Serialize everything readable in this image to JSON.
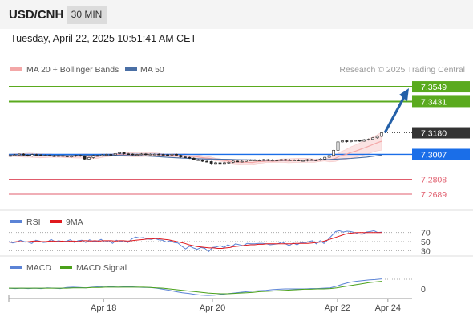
{
  "header": {
    "pair": "USD/CNH",
    "timeframe": "30 MIN"
  },
  "datetime": "Tuesday, April 22, 2025 10:51:41 AM CET",
  "credit": "Research © 2025 Trading Central",
  "colors": {
    "resistance": "#5aaa1e",
    "current": "#333333",
    "pivot": "#1a6ee8",
    "support": "#e05c6c",
    "arrow": "#2460a8",
    "ma50": "#4a6fa5",
    "bollinger": "#f3a7a7",
    "rsi": "#5b83d6",
    "rsi_ma": "#e0191e",
    "macd": "#5b83d6",
    "macd_signal": "#4aa11a"
  },
  "chart_data": [
    {
      "type": "candlestick",
      "legend": [
        "MA 20 + Bollinger Bands",
        "MA 50"
      ],
      "ylim": [
        7.258,
        7.362
      ],
      "x_ticks": [
        {
          "label": "Apr 18",
          "t": 0.235
        },
        {
          "label": "Apr 20",
          "t": 0.505
        },
        {
          "label": "Apr 22",
          "t": 0.815
        },
        {
          "label": "Apr 24",
          "t": 0.94
        }
      ],
      "levels": [
        {
          "value": 7.3549,
          "label": "7.3549",
          "kind": "resistance"
        },
        {
          "value": 7.3431,
          "label": "7.3431",
          "kind": "resistance"
        },
        {
          "value": 7.318,
          "label": "7.3180",
          "kind": "current"
        },
        {
          "value": 7.3007,
          "label": "7.3007",
          "kind": "pivot"
        },
        {
          "value": 7.2808,
          "label": "7.2808",
          "kind": "support"
        },
        {
          "value": 7.2689,
          "label": "7.2689",
          "kind": "support"
        }
      ],
      "closes": [
        7.2998,
        7.3003,
        7.301,
        7.3002,
        7.2995,
        7.3006,
        7.3004,
        7.2998,
        7.3,
        7.2996,
        7.2994,
        7.2997,
        7.2994,
        7.2989,
        7.2993,
        7.2999,
        7.2993,
        7.2969,
        7.2981,
        7.2998,
        7.2996,
        7.3003,
        7.3007,
        7.3004,
        7.3014,
        7.3021,
        7.3012,
        7.301,
        7.3004,
        7.3006,
        7.3011,
        7.3006,
        7.3009,
        7.3009,
        7.3007,
        7.3005,
        7.3002,
        7.3008,
        7.3,
        7.2987,
        7.2983,
        7.2977,
        7.2964,
        7.2962,
        7.2952,
        7.295,
        7.2936,
        7.294,
        7.2939,
        7.294,
        7.2944,
        7.2953,
        7.2952,
        7.2952,
        7.2961,
        7.2962,
        7.2962,
        7.2961,
        7.2965,
        7.2958,
        7.2962,
        7.2958,
        7.2966,
        7.2962,
        7.2962,
        7.2962,
        7.2958,
        7.2958,
        7.2965,
        7.2962,
        7.2961,
        7.297,
        7.2984,
        7.2998,
        7.304,
        7.3107,
        7.3116,
        7.3109,
        7.3117,
        7.3119,
        7.3113,
        7.3125,
        7.3128,
        7.314,
        7.3152,
        7.318
      ],
      "ma20": [
        7.2998,
        7.3002,
        7.3001,
        7.3,
        7.3001,
        7.2998,
        7.2996,
        7.2996,
        7.2998,
        7.2995,
        7.2992,
        7.2991,
        7.2993,
        7.2993,
        7.2994,
        7.2994,
        7.299,
        7.299,
        7.2997,
        7.2999,
        7.3003,
        7.3006,
        7.3005,
        7.3006,
        7.3005,
        7.3006,
        7.3007,
        7.3008,
        7.3005,
        7.3004,
        7.3002,
        7.3001,
        7.3001,
        7.2996,
        7.2996,
        7.2991,
        7.299,
        7.2983,
        7.2978,
        7.2974,
        7.2966,
        7.2961,
        7.2956,
        7.295,
        7.2946,
        7.2944,
        7.2944,
        7.2942,
        7.2949,
        7.295,
        7.2954,
        7.2952,
        7.2955,
        7.2957,
        7.2955,
        7.2958,
        7.2959,
        7.296,
        7.2959,
        7.2957,
        7.296,
        7.2963,
        7.2964,
        7.2974,
        7.2995,
        7.3005,
        7.3022,
        7.3034,
        7.3049,
        7.3064,
        7.3081,
        7.3098,
        7.3112
      ],
      "ma50": [
        7.3004,
        7.3004,
        7.3002,
        7.3001,
        7.3001,
        7.3,
        7.3,
        7.3,
        7.2998,
        7.3,
        7.3001,
        7.3,
        7.3001,
        7.3002,
        7.3,
        7.2999,
        7.2998,
        7.2998,
        7.2994,
        7.2991,
        7.2987,
        7.2983,
        7.298,
        7.2977,
        7.2974,
        7.2972,
        7.297,
        7.297,
        7.2968,
        7.2967,
        7.2965,
        7.2964,
        7.2963,
        7.2961,
        7.296,
        7.2961,
        7.296,
        7.2962,
        7.2962,
        7.2962,
        7.296,
        7.2964,
        7.2966,
        7.2969,
        7.2972,
        7.2975,
        7.298,
        7.2985,
        7.2993,
        7.3002
      ],
      "projection": {
        "from": 7.318,
        "to": 7.3549
      }
    },
    {
      "type": "line",
      "legend": [
        "RSI",
        "9MA"
      ],
      "ylim": [
        20,
        80
      ],
      "y_ticks": [
        "70",
        "50",
        "30"
      ],
      "rsi": [
        50,
        47,
        49,
        53,
        50,
        49,
        46,
        53,
        51,
        48,
        49,
        55,
        50,
        52,
        50,
        51,
        54,
        48,
        52,
        53,
        48,
        54,
        50,
        51,
        55,
        49,
        52,
        46,
        53,
        50,
        52,
        48,
        56,
        60,
        58,
        59,
        56,
        55,
        57,
        54,
        53,
        49,
        52,
        48,
        47,
        40,
        34,
        40,
        36,
        33,
        37,
        35,
        28,
        37,
        38,
        41,
        37,
        43,
        39,
        45,
        43,
        41,
        46,
        45,
        45,
        46,
        46,
        45,
        43,
        44,
        45,
        49,
        45,
        41,
        47,
        43,
        48,
        47,
        50,
        52,
        45,
        52,
        46,
        54,
        63,
        72,
        74,
        71,
        73,
        72,
        70,
        67,
        66,
        71,
        72,
        74,
        70,
        71
      ],
      "rsi_ma": [
        49,
        49,
        50,
        50,
        49,
        50,
        51,
        51,
        50,
        50,
        51,
        51,
        50,
        51,
        50,
        51,
        51,
        50,
        52,
        52,
        51,
        52,
        51,
        52,
        52,
        52,
        51,
        52,
        52,
        51,
        52,
        53,
        54,
        55,
        56,
        56,
        57,
        56,
        55,
        54,
        52,
        50,
        48,
        46,
        43,
        41,
        39,
        38,
        37,
        36,
        36,
        35,
        35,
        36,
        37,
        39,
        40,
        41,
        42,
        43,
        43,
        44,
        44,
        45,
        45,
        45,
        45,
        45,
        45,
        45,
        46,
        46,
        46,
        46,
        47,
        48,
        49,
        51,
        54,
        57,
        60,
        63,
        66,
        68,
        69,
        70,
        70,
        70,
        70,
        70,
        70,
        70
      ]
    },
    {
      "type": "line",
      "legend": [
        "MACD",
        "MACD Signal"
      ],
      "ylim": [
        -0.0028,
        0.0042
      ],
      "y_ticks": [
        "0"
      ],
      "macd": [
        0.0002,
        0.0001,
        0.0002,
        0.0001,
        0.0002,
        0.0001,
        0.0003,
        0.0002,
        0.0001,
        0.0004,
        0.0005,
        0.0004,
        0.0003,
        0.0005,
        0.0006,
        0.0008,
        0.0006,
        0.0005,
        0.0006,
        0.0006,
        0.0005,
        0.0004,
        0.0004,
        0.0002,
        -0.0001,
        -0.0004,
        -0.0008,
        -0.0011,
        -0.0013,
        -0.0016,
        -0.0018,
        -0.0019,
        -0.0018,
        -0.0016,
        -0.0014,
        -0.0012,
        -0.001,
        -0.0008,
        -0.0006,
        -0.0005,
        -0.0004,
        -0.0002,
        -0.0001,
        0.0,
        0.0,
        0.0,
        0.0,
        0.0001,
        0.0001,
        0.0002,
        0.0003,
        0.0008,
        0.0014,
        0.0019,
        0.0022,
        0.0024,
        0.0026,
        0.0027,
        0.0029
      ],
      "macd_signal": [
        0.0002,
        0.0002,
        0.0002,
        0.0002,
        0.0002,
        0.0002,
        0.0002,
        0.0002,
        0.0002,
        0.0002,
        0.0003,
        0.0003,
        0.0003,
        0.0004,
        0.0004,
        0.0005,
        0.0005,
        0.0005,
        0.0005,
        0.0005,
        0.0005,
        0.0005,
        0.0004,
        0.0003,
        0.0002,
        0.0,
        -0.0002,
        -0.0004,
        -0.0006,
        -0.0008,
        -0.001,
        -0.0012,
        -0.0013,
        -0.0014,
        -0.0014,
        -0.0013,
        -0.0012,
        -0.0011,
        -0.001,
        -0.0008,
        -0.0007,
        -0.0006,
        -0.0005,
        -0.0004,
        -0.0003,
        -0.0002,
        -0.0001,
        -0.0001,
        0.0,
        0.0,
        0.0001,
        0.0003,
        0.0006,
        0.0009,
        0.0012,
        0.0015,
        0.0018,
        0.002,
        0.0022
      ]
    }
  ]
}
